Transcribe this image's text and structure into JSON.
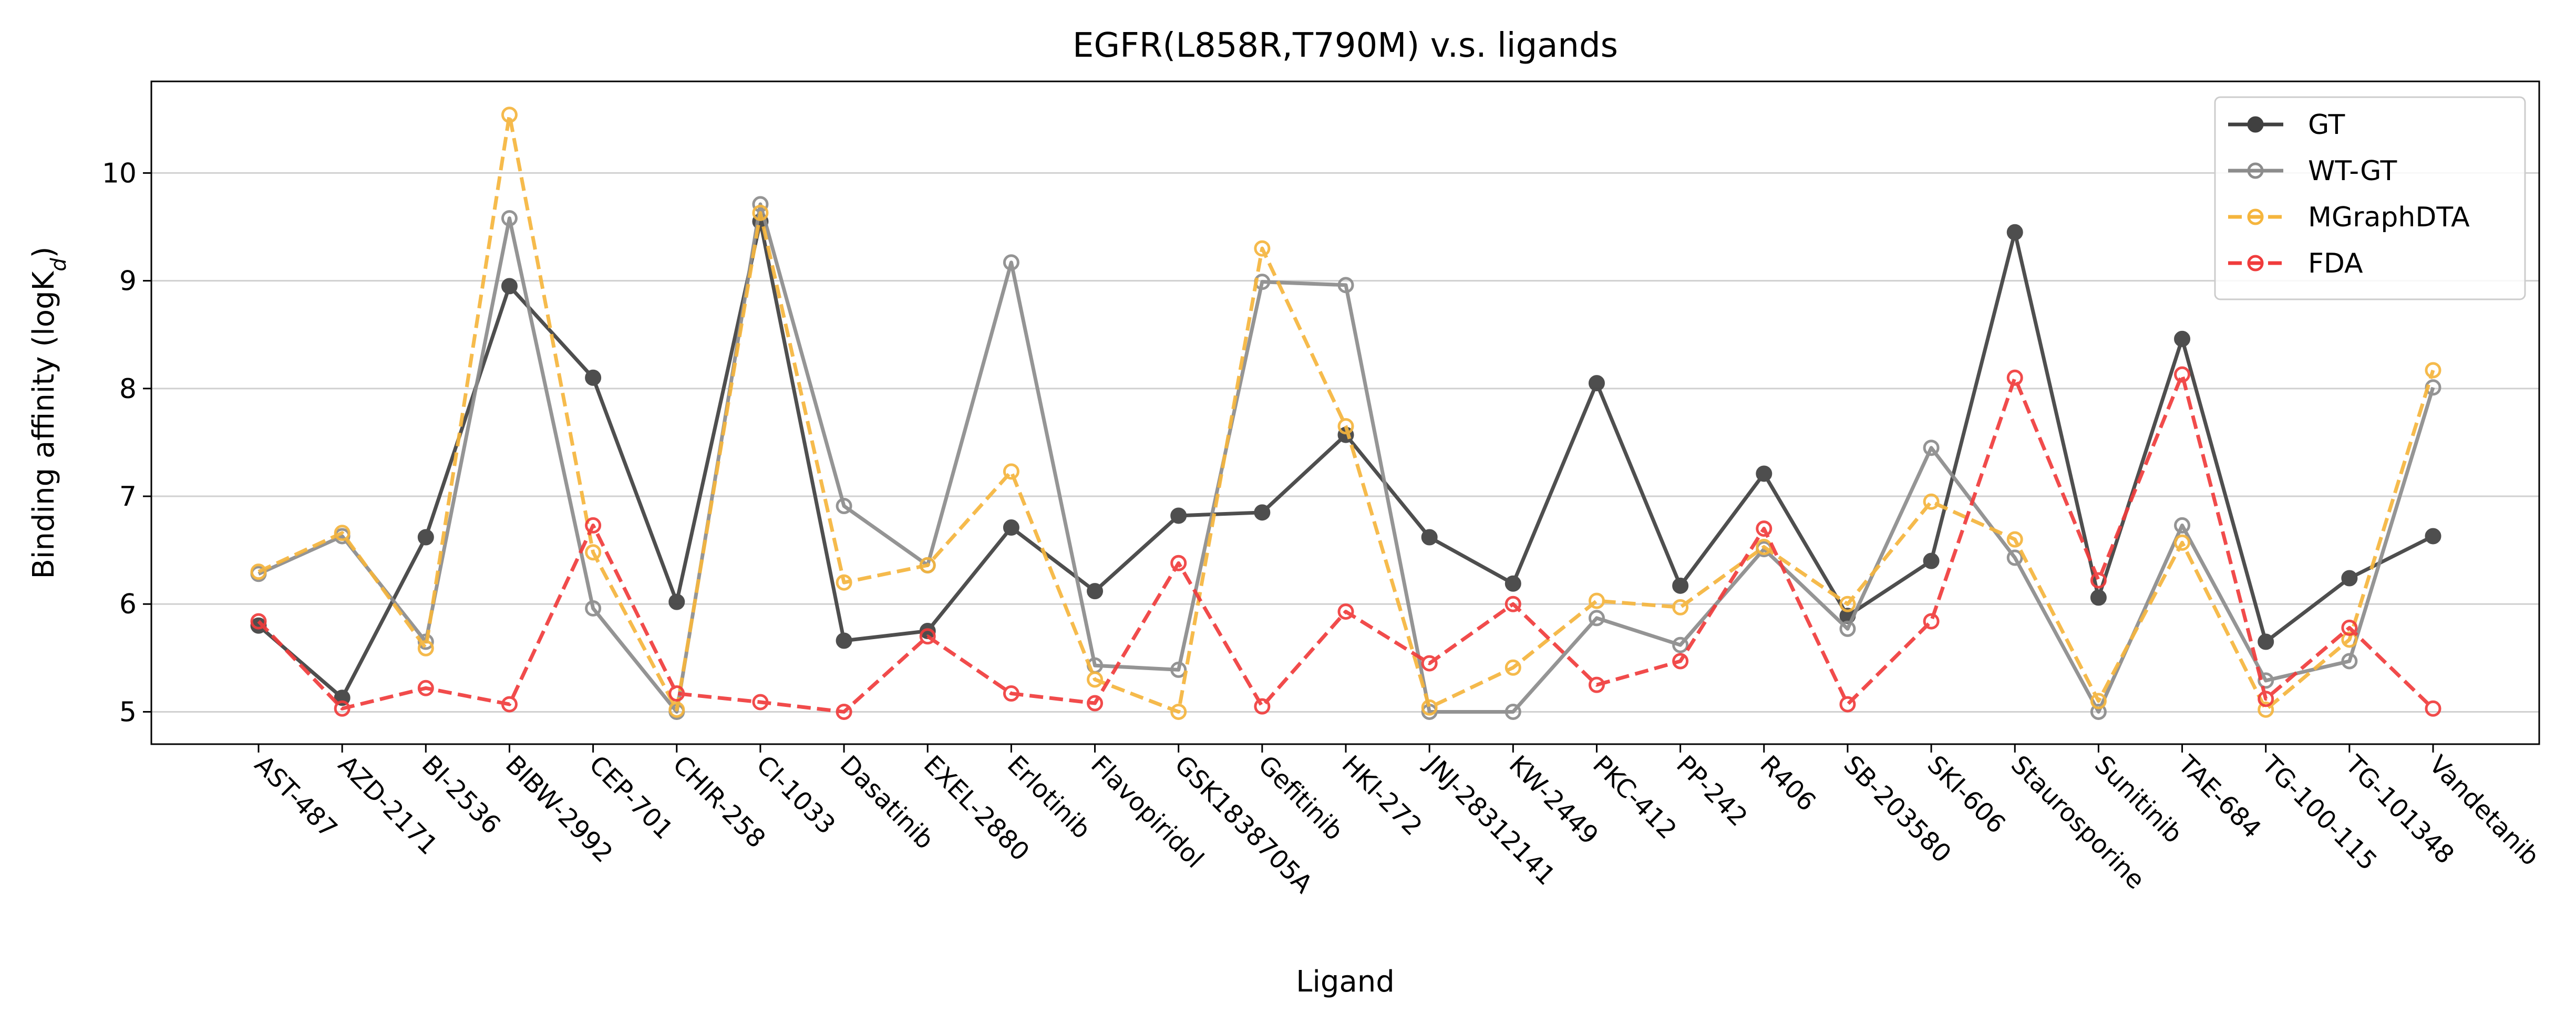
{
  "chart_data": {
    "type": "line",
    "title": "EGFR(L858R,T790M) v.s. ligands",
    "xlabel": "Ligand",
    "ylabel_main": "Binding affinity (logK",
    "ylabel_sub": "d",
    "ylabel_end": ")",
    "ylim": [
      4.7,
      10.85
    ],
    "yticks": [
      5,
      6,
      7,
      8,
      9,
      10
    ],
    "grid": "horizontal",
    "legend_position": "top-right",
    "categories": [
      "AST-487",
      "AZD-2171",
      "BI-2536",
      "BIBW-2992",
      "CEP-701",
      "CHIR-258",
      "CI-1033",
      "Dasatinib",
      "EXEL-2880",
      "Erlotinib",
      "Flavopiridol",
      "GSK1838705A",
      "Gefitinib",
      "HKI-272",
      "JNJ-28312141",
      "KW-2449",
      "PKC-412",
      "PP-242",
      "R406",
      "SB-203580",
      "SKI-606",
      "Staurosporine",
      "Sunitinib",
      "TAE-684",
      "TG-100-115",
      "TG-101348",
      "Vandetanib"
    ],
    "series": [
      {
        "name": "GT",
        "color": "#404040",
        "style": "solid",
        "filled": true,
        "values": [
          5.8,
          5.13,
          6.62,
          8.95,
          8.1,
          6.02,
          9.55,
          5.66,
          5.75,
          6.71,
          6.12,
          6.82,
          6.85,
          7.57,
          6.62,
          6.19,
          8.05,
          6.17,
          7.21,
          5.89,
          6.4,
          9.45,
          6.06,
          8.46,
          5.65,
          6.24,
          6.63
        ]
      },
      {
        "name": "WT-GT",
        "color": "#8c8c8c",
        "style": "solid",
        "filled": false,
        "values": [
          6.28,
          6.63,
          5.65,
          9.58,
          5.96,
          5.0,
          9.71,
          6.91,
          6.36,
          9.17,
          5.43,
          5.39,
          8.99,
          8.96,
          5.0,
          5.0,
          5.87,
          5.62,
          6.51,
          5.77,
          7.45,
          6.43,
          5.0,
          6.73,
          5.29,
          5.47,
          8.01
        ]
      },
      {
        "name": "MGraphDTA",
        "color": "#f5b53d",
        "style": "dashed",
        "filled": false,
        "values": [
          6.3,
          6.66,
          5.59,
          10.54,
          6.48,
          5.02,
          9.63,
          6.2,
          6.36,
          7.23,
          5.3,
          5.0,
          9.3,
          7.65,
          5.04,
          5.41,
          6.03,
          5.97,
          6.53,
          6.0,
          6.95,
          6.6,
          5.1,
          6.57,
          5.02,
          5.67,
          8.17
        ]
      },
      {
        "name": "FDA",
        "color": "#f03c3c",
        "style": "dashed",
        "filled": false,
        "values": [
          5.84,
          5.03,
          5.22,
          5.07,
          6.73,
          5.17,
          5.09,
          5.0,
          5.7,
          5.17,
          5.08,
          6.38,
          5.05,
          5.93,
          5.45,
          6.0,
          5.25,
          5.47,
          6.7,
          5.07,
          5.84,
          8.1,
          6.22,
          8.13,
          5.12,
          5.78,
          5.03
        ]
      }
    ]
  }
}
